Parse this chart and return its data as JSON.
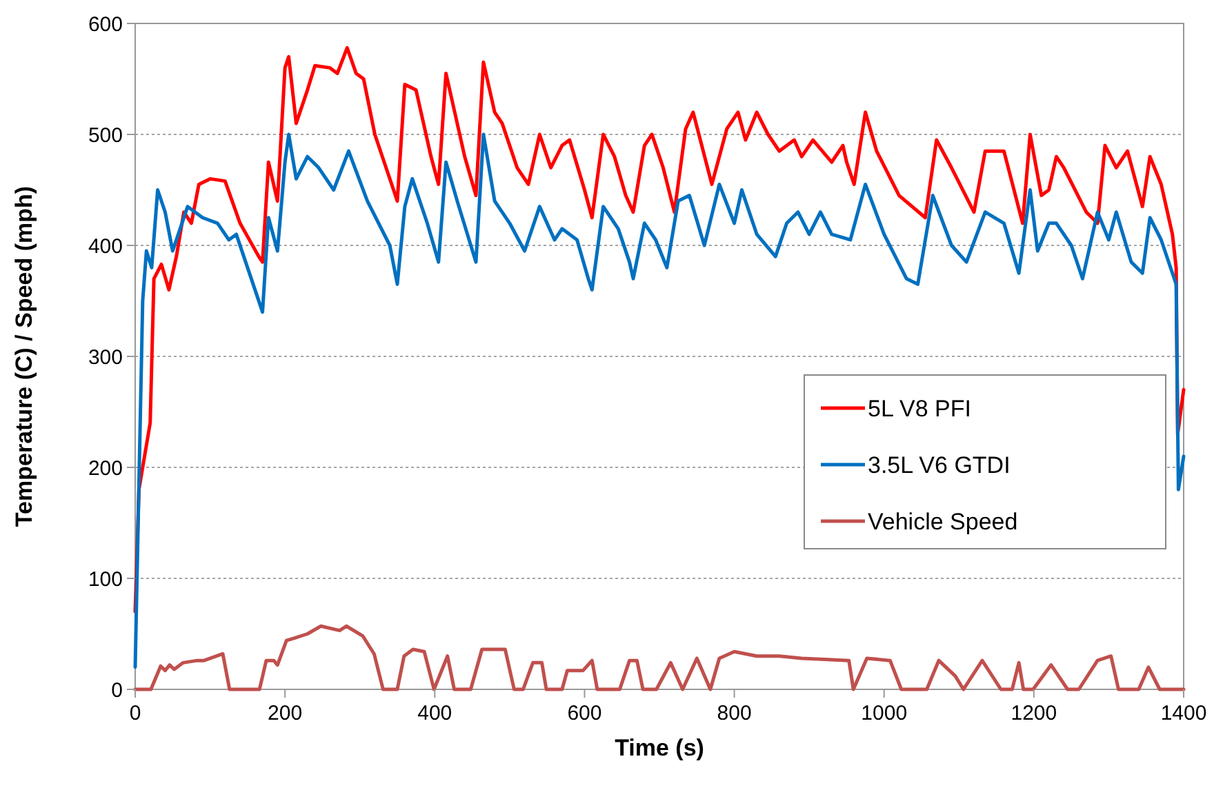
{
  "chart_data": {
    "type": "line",
    "xlabel": "Time (s)",
    "ylabel": "Temperature (C) / Speed (mph)",
    "xlim": [
      0,
      1400
    ],
    "xticks": [
      0,
      200,
      400,
      600,
      800,
      1000,
      1200,
      1400
    ],
    "ylim": [
      0,
      600
    ],
    "yticks": [
      0,
      100,
      200,
      300,
      400,
      500,
      600
    ],
    "grid": "y",
    "legend": "right",
    "marker": "none",
    "line_style": "solid",
    "series": [
      {
        "name": "5L V8 PFI",
        "color": "#ff0000",
        "x": [
          0,
          5,
          20,
          25,
          35,
          45,
          55,
          65,
          75,
          85,
          100,
          120,
          140,
          165,
          170,
          178,
          190,
          200,
          205,
          215,
          230,
          240,
          260,
          270,
          283,
          295,
          305,
          320,
          345,
          350,
          360,
          375,
          395,
          405,
          415,
          440,
          455,
          465,
          480,
          490,
          510,
          525,
          540,
          555,
          570,
          580,
          600,
          610,
          625,
          640,
          655,
          665,
          680,
          690,
          705,
          720,
          735,
          745,
          770,
          790,
          805,
          815,
          830,
          845,
          860,
          880,
          890,
          905,
          930,
          945,
          950,
          960,
          975,
          990,
          1020,
          1055,
          1070,
          1090,
          1120,
          1135,
          1160,
          1185,
          1195,
          1210,
          1220,
          1230,
          1240,
          1270,
          1285,
          1295,
          1310,
          1325,
          1345,
          1355,
          1370,
          1385,
          1390,
          1392,
          1400
        ],
        "values": [
          70,
          180,
          240,
          370,
          383,
          360,
          390,
          430,
          420,
          455,
          460,
          458,
          420,
          390,
          385,
          475,
          440,
          560,
          570,
          510,
          540,
          562,
          560,
          555,
          578,
          555,
          550,
          500,
          450,
          440,
          545,
          540,
          480,
          455,
          555,
          480,
          445,
          565,
          520,
          510,
          470,
          455,
          500,
          470,
          490,
          495,
          450,
          425,
          500,
          480,
          445,
          430,
          490,
          500,
          470,
          430,
          505,
          520,
          455,
          505,
          520,
          495,
          520,
          500,
          485,
          495,
          480,
          495,
          475,
          490,
          475,
          455,
          520,
          485,
          445,
          425,
          495,
          470,
          430,
          485,
          485,
          420,
          500,
          445,
          450,
          480,
          470,
          430,
          420,
          490,
          470,
          485,
          435,
          480,
          455,
          410,
          380,
          230,
          270
        ]
      },
      {
        "name": "3.5L V6 GTDI",
        "color": "#0070c0",
        "x": [
          0,
          10,
          15,
          22,
          30,
          40,
          50,
          60,
          70,
          90,
          110,
          125,
          135,
          160,
          170,
          178,
          190,
          200,
          205,
          215,
          230,
          245,
          265,
          285,
          310,
          340,
          350,
          360,
          370,
          390,
          405,
          415,
          430,
          455,
          465,
          480,
          500,
          520,
          540,
          560,
          570,
          590,
          605,
          610,
          625,
          645,
          660,
          665,
          680,
          695,
          710,
          725,
          740,
          760,
          780,
          800,
          810,
          830,
          855,
          870,
          885,
          900,
          915,
          930,
          955,
          975,
          1000,
          1030,
          1045,
          1065,
          1090,
          1110,
          1135,
          1160,
          1180,
          1195,
          1205,
          1220,
          1230,
          1250,
          1265,
          1285,
          1300,
          1310,
          1330,
          1345,
          1355,
          1370,
          1385,
          1390,
          1393,
          1400
        ],
        "values": [
          20,
          350,
          395,
          380,
          450,
          430,
          395,
          415,
          435,
          425,
          420,
          405,
          410,
          360,
          340,
          425,
          395,
          475,
          500,
          460,
          480,
          470,
          450,
          485,
          440,
          400,
          365,
          435,
          460,
          420,
          385,
          475,
          440,
          385,
          500,
          440,
          420,
          395,
          435,
          405,
          415,
          405,
          370,
          360,
          435,
          415,
          385,
          370,
          420,
          405,
          380,
          440,
          445,
          400,
          455,
          420,
          450,
          410,
          390,
          420,
          430,
          410,
          430,
          410,
          405,
          455,
          410,
          370,
          365,
          445,
          400,
          385,
          430,
          420,
          375,
          450,
          395,
          420,
          420,
          400,
          370,
          430,
          405,
          430,
          385,
          375,
          425,
          405,
          375,
          365,
          180,
          210
        ]
      },
      {
        "name": "Vehicle Speed",
        "color": "#c0504d",
        "x": [
          0,
          21,
          34,
          40,
          46,
          52,
          64,
          83,
          92,
          117,
          126,
          166,
          175,
          185,
          190,
          202,
          212,
          230,
          248,
          273,
          282,
          304,
          319,
          331,
          350,
          359,
          371,
          386,
          399,
          417,
          426,
          448,
          463,
          494,
          506,
          518,
          531,
          543,
          549,
          570,
          577,
          598,
          610,
          617,
          647,
          660,
          670,
          678,
          696,
          715,
          731,
          750,
          768,
          780,
          800,
          830,
          860,
          890,
          920,
          953,
          959,
          977,
          1008,
          1023,
          1057,
          1073,
          1095,
          1106,
          1131,
          1156,
          1171,
          1180,
          1186,
          1199,
          1223,
          1245,
          1260,
          1285,
          1303,
          1313,
          1340,
          1353,
          1368,
          1400
        ],
        "values": [
          0,
          0,
          21,
          17,
          22,
          18,
          24,
          26,
          26,
          32,
          0,
          0,
          26,
          26,
          22,
          44,
          46,
          50,
          57,
          53,
          57,
          48,
          32,
          0,
          0,
          30,
          36,
          34,
          0,
          30,
          0,
          0,
          36,
          36,
          0,
          0,
          24,
          24,
          0,
          0,
          17,
          17,
          26,
          0,
          0,
          26,
          26,
          0,
          0,
          24,
          0,
          28,
          0,
          28,
          34,
          30,
          30,
          28,
          27,
          26,
          0,
          28,
          26,
          0,
          0,
          26,
          12,
          0,
          26,
          0,
          0,
          24,
          0,
          0,
          22,
          0,
          0,
          26,
          30,
          0,
          0,
          20,
          0,
          0
        ]
      }
    ]
  }
}
